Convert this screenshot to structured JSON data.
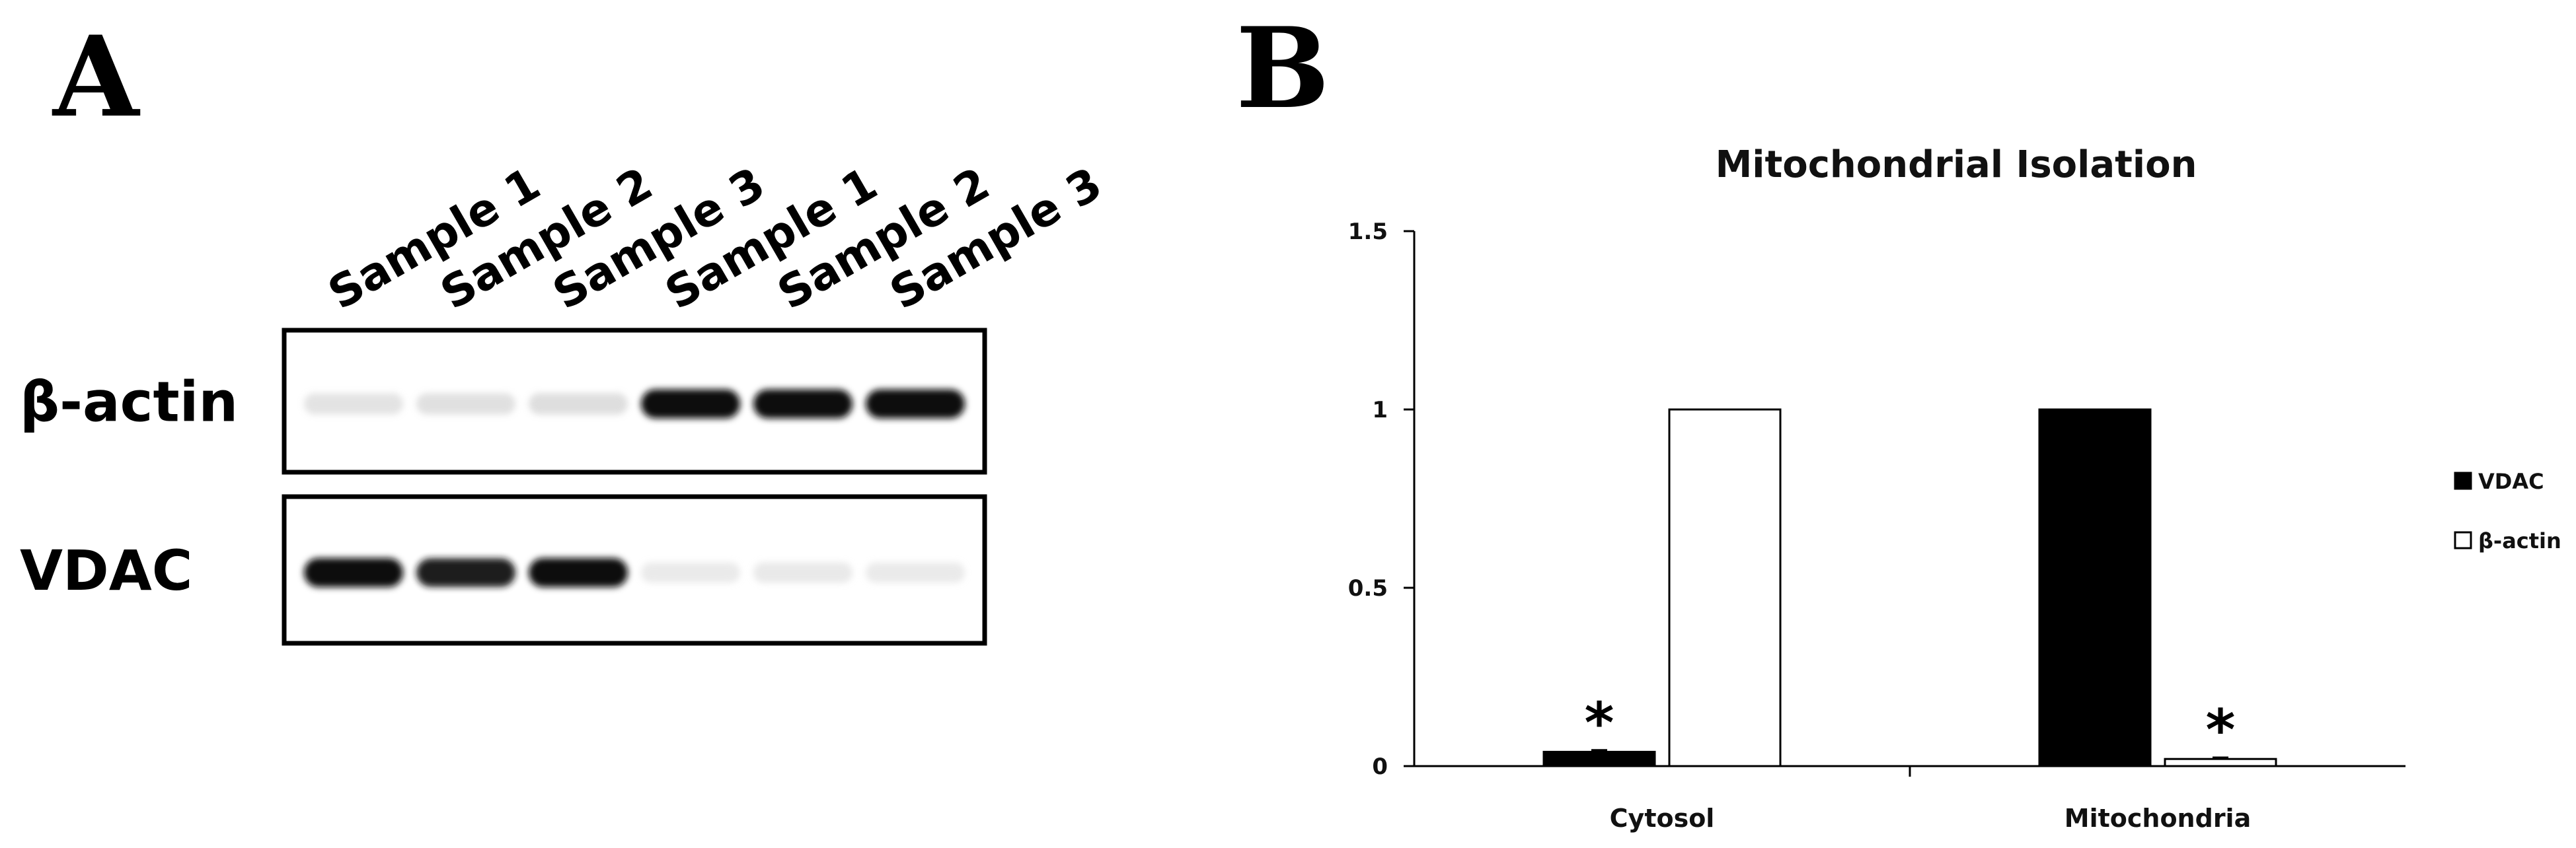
{
  "panels": {
    "a": "A",
    "b": "B"
  },
  "blot": {
    "lanes": [
      "Sample 1",
      "Sample 2",
      "Sample 3",
      "Sample 1",
      "Sample 2",
      "Sample 3"
    ],
    "rows": [
      {
        "label": "β-actin",
        "band_intensity": [
          0.12,
          0.14,
          0.16,
          1.0,
          1.0,
          1.0
        ]
      },
      {
        "label": "VDAC",
        "band_intensity": [
          1.0,
          0.95,
          1.0,
          0.06,
          0.07,
          0.06
        ]
      }
    ]
  },
  "chart_data": {
    "type": "bar",
    "title": "Mitochondrial Isolation",
    "categories": [
      "Cytosol",
      "Mitochondria"
    ],
    "series": [
      {
        "name": "VDAC",
        "values": [
          0.04,
          1.0
        ],
        "error": [
          0.005,
          0.0
        ],
        "color": "#000000"
      },
      {
        "name": "β-actin",
        "values": [
          1.0,
          0.02
        ],
        "error": [
          0.0,
          0.004
        ],
        "color": "#ffffff"
      }
    ],
    "ylim": [
      0,
      1.5
    ],
    "yticks": [
      0,
      0.5,
      1,
      1.5
    ],
    "ytick_labels": [
      "0",
      "0.5",
      "1",
      "1.5"
    ],
    "grid": false,
    "legend_position": "right",
    "annotations": [
      {
        "text": "*",
        "category": "Cytosol",
        "series": "VDAC"
      },
      {
        "text": "*",
        "category": "Mitochondria",
        "series": "β-actin"
      }
    ]
  }
}
